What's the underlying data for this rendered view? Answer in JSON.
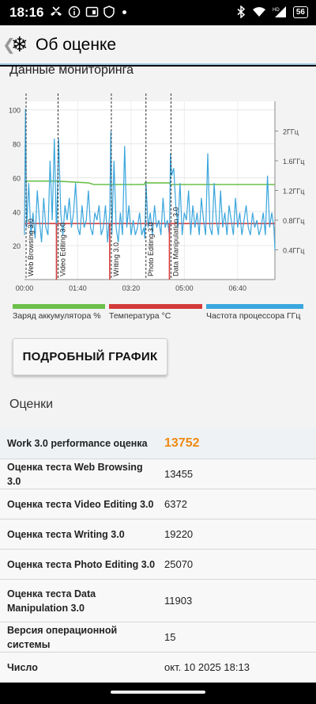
{
  "status_bar": {
    "time": "18:16",
    "battery": "56",
    "left_icons": [
      "missed-call-icon",
      "info-icon",
      "cast-icon",
      "shield-icon",
      "dot-icon"
    ],
    "right_icons": [
      "bluetooth-icon",
      "wifi-icon",
      "hd-signal-icon",
      "battery-icon"
    ]
  },
  "app_bar": {
    "back_glyph": "❮",
    "logo_glyph": "❄",
    "title": "Об оценке"
  },
  "monitoring": {
    "section_title": "Данные мониторинга",
    "legend": [
      {
        "label": "Заряд аккумулятора %",
        "color": "#6cc04a"
      },
      {
        "label": "Температура °C",
        "color": "#d43a3a"
      },
      {
        "label": "Частота процессора ГГц",
        "color": "#3aa6dd"
      }
    ],
    "detail_button": "ПОДРОБНЫЙ ГРАФИК"
  },
  "chart_data": {
    "type": "line",
    "x_ticks": [
      "00:00",
      "01:40",
      "03:20",
      "05:00",
      "06:40"
    ],
    "y_left_ticks": [
      "20",
      "40",
      "60",
      "80",
      "100"
    ],
    "y_right_ticks": [
      "0.4ГГц",
      "0.8ГГц",
      "1.2ГГц",
      "1.6ГГц",
      "2ГГц"
    ],
    "ylim_left": [
      0,
      105
    ],
    "ylim_right": [
      0,
      2.4
    ],
    "xlim_seconds": [
      0,
      470
    ],
    "phases": [
      {
        "label": "Web Browsing 3.0",
        "start_s": 0,
        "end_s": 60
      },
      {
        "label": "Video Editing 3.0",
        "start_s": 60,
        "end_s": 160
      },
      {
        "label": "Writing 3.0",
        "start_s": 160,
        "end_s": 225
      },
      {
        "label": "Photo Editing 3.0",
        "start_s": 225,
        "end_s": 272
      },
      {
        "label": "Data Manipulation 3.0",
        "start_s": 272,
        "end_s": 470
      }
    ],
    "series": [
      {
        "name": "Заряд аккумулятора %",
        "color": "#6cc04a",
        "x": [
          0,
          5,
          60,
          120,
          130,
          225,
          226,
          272,
          274,
          470
        ],
        "y": [
          58,
          58,
          58,
          57,
          56,
          56,
          57,
          57,
          56,
          56
        ]
      },
      {
        "name": "Температура °C",
        "color": "#d43a3a",
        "x": [
          0,
          60,
          61,
          160,
          161,
          225,
          226,
          272,
          273,
          470
        ],
        "y": [
          33,
          33,
          33,
          33,
          33,
          33,
          33,
          33,
          33,
          33
        ]
      },
      {
        "name": "Частота процессора ГГц",
        "color": "#3aa6dd",
        "x": [
          0,
          2,
          4,
          8,
          12,
          16,
          20,
          24,
          28,
          32,
          36,
          40,
          44,
          48,
          52,
          56,
          60,
          64,
          68,
          72,
          76,
          80,
          84,
          88,
          92,
          96,
          100,
          104,
          108,
          112,
          116,
          120,
          124,
          128,
          132,
          136,
          140,
          144,
          148,
          152,
          156,
          160,
          162,
          164,
          168,
          172,
          176,
          180,
          184,
          188,
          192,
          196,
          200,
          204,
          208,
          212,
          216,
          220,
          224,
          226,
          228,
          232,
          236,
          240,
          244,
          248,
          252,
          256,
          260,
          264,
          268,
          272,
          274,
          276,
          280,
          284,
          288,
          292,
          296,
          300,
          304,
          308,
          312,
          316,
          320,
          324,
          328,
          332,
          336,
          340,
          344,
          348,
          352,
          356,
          360,
          364,
          368,
          372,
          376,
          380,
          384,
          388,
          392,
          396,
          400,
          404,
          408,
          412,
          416,
          420,
          424,
          428,
          432,
          436,
          440,
          444,
          448,
          452,
          456,
          460,
          464,
          468,
          470
        ],
        "y": [
          0.6,
          2.3,
          0.7,
          1.3,
          0.6,
          0.9,
          0.55,
          1.2,
          0.8,
          0.5,
          1.1,
          0.7,
          0.6,
          1.6,
          0.8,
          1.9,
          0.6,
          1.9,
          0.9,
          0.6,
          1.0,
          0.8,
          1.1,
          0.7,
          0.9,
          1.3,
          0.7,
          0.6,
          1.0,
          0.7,
          0.8,
          1.2,
          0.7,
          0.6,
          0.9,
          0.8,
          1.0,
          0.6,
          0.7,
          1.0,
          0.5,
          0.9,
          2.0,
          0.6,
          1.6,
          0.7,
          0.5,
          0.9,
          0.6,
          1.8,
          0.7,
          1.0,
          0.6,
          0.8,
          0.6,
          0.7,
          0.9,
          0.6,
          0.7,
          0.55,
          1.3,
          0.7,
          0.9,
          0.6,
          1.0,
          0.7,
          0.8,
          0.6,
          1.1,
          0.7,
          0.8,
          0.6,
          1.7,
          1.4,
          1.5,
          1.0,
          0.7,
          1.3,
          0.6,
          0.9,
          0.8,
          1.2,
          0.6,
          1.0,
          0.7,
          0.9,
          0.6,
          1.1,
          0.8,
          0.6,
          1.7,
          0.7,
          0.6,
          1.3,
          0.8,
          0.6,
          1.2,
          0.7,
          0.9,
          0.6,
          1.0,
          0.8,
          0.6,
          1.1,
          0.7,
          0.9,
          0.6,
          0.8,
          1.0,
          0.7,
          0.6,
          0.9,
          0.7,
          0.8,
          0.6,
          0.7,
          0.9,
          0.6,
          1.4,
          0.7,
          0.9,
          0.7,
          0.4
        ]
      }
    ]
  },
  "scores": {
    "section_title": "Оценки",
    "rows": [
      {
        "label": "Work 3.0 performance оценка",
        "value": "13752"
      },
      {
        "label": "Оценка теста Web Browsing 3.0",
        "value": "13455"
      },
      {
        "label": "Оценка теста Video Editing 3.0",
        "value": "6372"
      },
      {
        "label": "Оценка теста Writing 3.0",
        "value": "19220"
      },
      {
        "label": "Оценка теста Photo Editing 3.0",
        "value": "25070"
      },
      {
        "label": "Оценка теста Data Manipulation 3.0",
        "value": "11903"
      },
      {
        "label": "Версия операционной системы",
        "value": "15"
      },
      {
        "label": "Число",
        "value": "окт. 10 2025 18:13"
      }
    ]
  }
}
